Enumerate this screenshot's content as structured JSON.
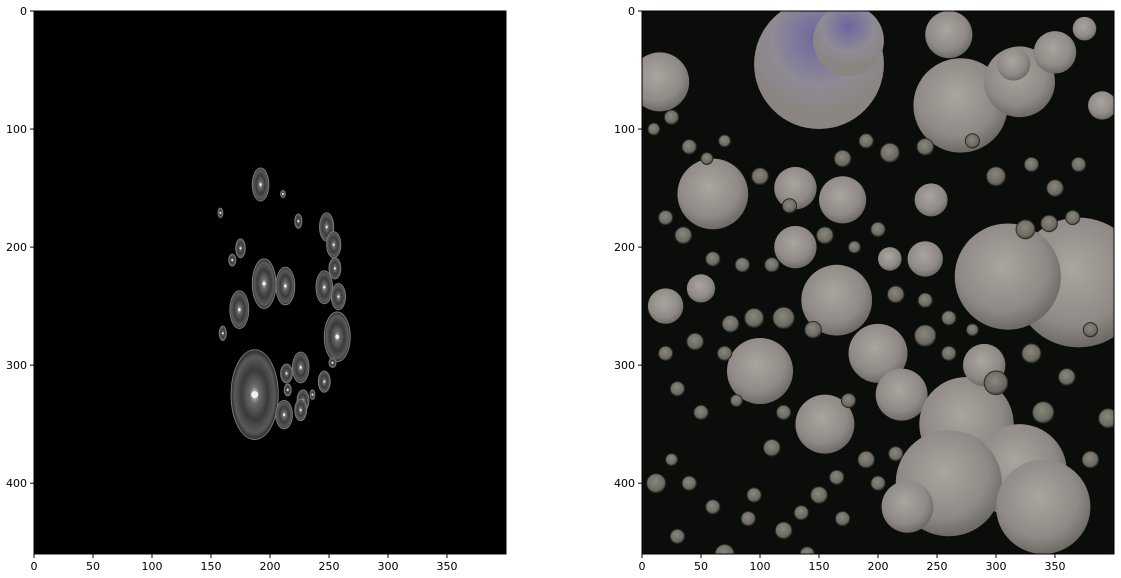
{
  "figure": {
    "background": "#ffffff",
    "axis_color": "#000000"
  },
  "panels": [
    {
      "name": "left-image-panel",
      "xlim": [
        0,
        400
      ],
      "ylim": [
        460,
        0
      ],
      "x_ticks": [
        "0",
        "50",
        "100",
        "150",
        "200",
        "250",
        "300",
        "350"
      ],
      "y_ticks": [
        "0",
        "100",
        "200",
        "300",
        "400"
      ],
      "background_color": "#000000",
      "content": "grayscale-rings"
    },
    {
      "name": "right-image-panel",
      "xlim": [
        0,
        400
      ],
      "ylim": [
        460,
        0
      ],
      "x_ticks": [
        "0",
        "50",
        "100",
        "150",
        "200",
        "250",
        "300",
        "350"
      ],
      "y_ticks": [
        "0",
        "100",
        "200",
        "300",
        "400"
      ],
      "background_color": "#0b0d0b",
      "content": "color-blobs"
    }
  ]
}
